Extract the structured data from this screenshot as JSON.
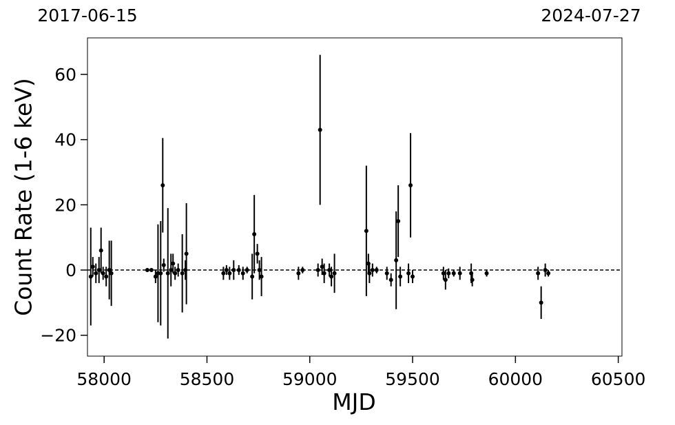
{
  "chart_data": {
    "type": "errorbar",
    "xlabel": "MJD",
    "ylabel": "Count Rate (1-6 keV)",
    "xlim": [
      57919,
      60518
    ],
    "ylim": [
      -26.4,
      71.2
    ],
    "xticks": [
      58000,
      58500,
      59000,
      59500,
      60000,
      60500
    ],
    "yticks": [
      {
        "value": -20,
        "label": "−20"
      },
      0,
      20,
      40,
      60
    ],
    "x2ticks": [
      {
        "value": 57919,
        "label": "2017-06-15"
      },
      {
        "value": 60518,
        "label": "2024-07-27"
      }
    ],
    "hline": 0,
    "color": "#000000",
    "series": [
      {
        "x": [
          57935,
          57945,
          57960,
          57975,
          57985,
          57995,
          58010,
          58025,
          58035,
          58210,
          58230,
          58250,
          58262,
          58275,
          58285,
          58290,
          58310,
          58325,
          58335,
          58345,
          58360,
          58380,
          58395,
          58400,
          58580,
          58595,
          58610,
          58630,
          58655,
          58675,
          58695,
          58720,
          58730,
          58745,
          58755,
          58765,
          58945,
          58965,
          59040,
          59050,
          59060,
          59070,
          59095,
          59105,
          59120,
          59275,
          59285,
          59290,
          59305,
          59325,
          59375,
          59395,
          59420,
          59430,
          59440,
          59480,
          59490,
          59500,
          59650,
          59660,
          59675,
          59700,
          59730,
          59785,
          59790,
          59860,
          60110,
          60125,
          60145,
          60160
        ],
        "values": [
          -2,
          1,
          -1,
          0,
          6,
          -1,
          -2,
          0,
          -1,
          0,
          0,
          -2,
          -1,
          -1,
          26,
          1.5,
          -1,
          0,
          2,
          -1,
          0,
          -1,
          0,
          5,
          -1,
          0,
          -1,
          0,
          0,
          -1,
          0,
          -2,
          11,
          5,
          0,
          -2,
          -1,
          0,
          0,
          43,
          1,
          -1,
          0,
          -2,
          -1,
          12,
          2,
          -1,
          0,
          0,
          -1,
          -3,
          3,
          15,
          -2,
          -1,
          26,
          -2,
          -1,
          -3,
          -1,
          -1,
          -1,
          -1,
          -3,
          -1,
          -1,
          -10,
          0,
          -1
        ],
        "errors": [
          15,
          3,
          3,
          4,
          7,
          2,
          3,
          9,
          10,
          0.5,
          0.5,
          2,
          15,
          16,
          14.5,
          2,
          20,
          5,
          3,
          2,
          2,
          12,
          3,
          15.5,
          2,
          1.5,
          2,
          3,
          1.5,
          2,
          1,
          7,
          12,
          3,
          3,
          6,
          2,
          1,
          2,
          23,
          2.5,
          3,
          2,
          3,
          6,
          20,
          3,
          3,
          2,
          1,
          2,
          2,
          15,
          11,
          3,
          3,
          16,
          2,
          2,
          3,
          1.5,
          1,
          2,
          3,
          2,
          1,
          2,
          5,
          2,
          1
        ]
      }
    ]
  }
}
